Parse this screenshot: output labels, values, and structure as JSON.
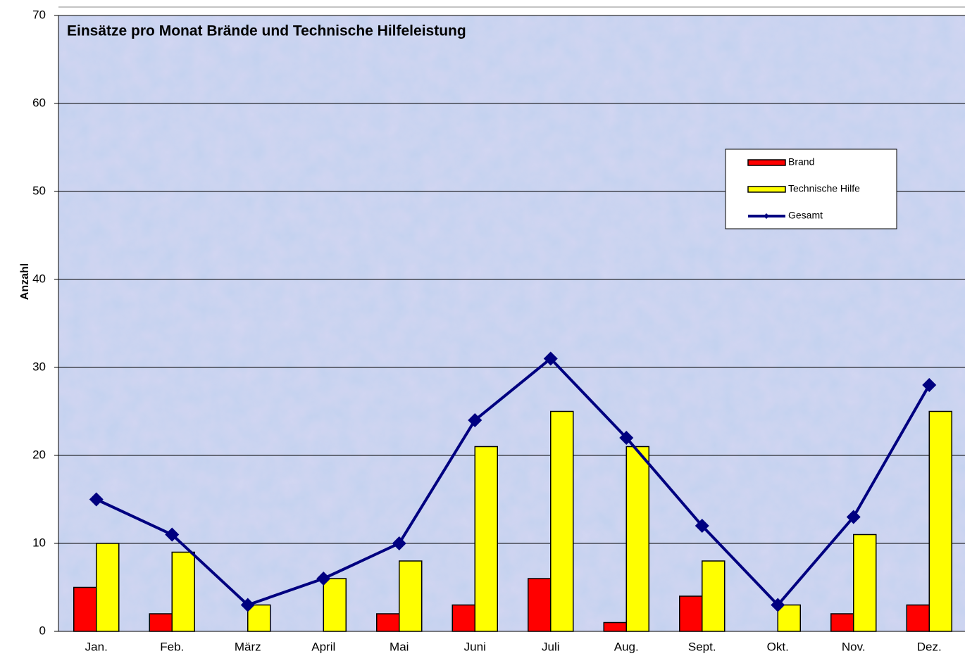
{
  "chart_data": {
    "type": "bar+line",
    "title": "Einsätze pro Monat Brände und Technische Hilfeleistung",
    "y_label": "Anzahl",
    "categories": [
      "Jan.",
      "Feb.",
      "März",
      "April",
      "Mai",
      "Juni",
      "Juli",
      "Aug.",
      "Sept.",
      "Okt.",
      "Nov.",
      "Dez."
    ],
    "series": [
      {
        "name": "Brand",
        "type": "bar",
        "color": "#ff0000",
        "values": [
          5,
          2,
          0,
          0,
          2,
          3,
          6,
          1,
          4,
          0,
          2,
          3
        ]
      },
      {
        "name": "Technische Hilfe",
        "type": "bar",
        "color": "#ffff00",
        "values": [
          10,
          9,
          3,
          6,
          8,
          21,
          25,
          21,
          8,
          3,
          11,
          25
        ]
      },
      {
        "name": "Gesamt",
        "type": "line",
        "color": "#000080",
        "values": [
          15,
          11,
          3,
          6,
          10,
          24,
          31,
          22,
          12,
          3,
          13,
          28
        ]
      }
    ],
    "ylim": [
      0,
      70
    ],
    "yticks": [
      0,
      10,
      20,
      30,
      40,
      50,
      60,
      70
    ],
    "grid": true,
    "legend": "upper right"
  }
}
